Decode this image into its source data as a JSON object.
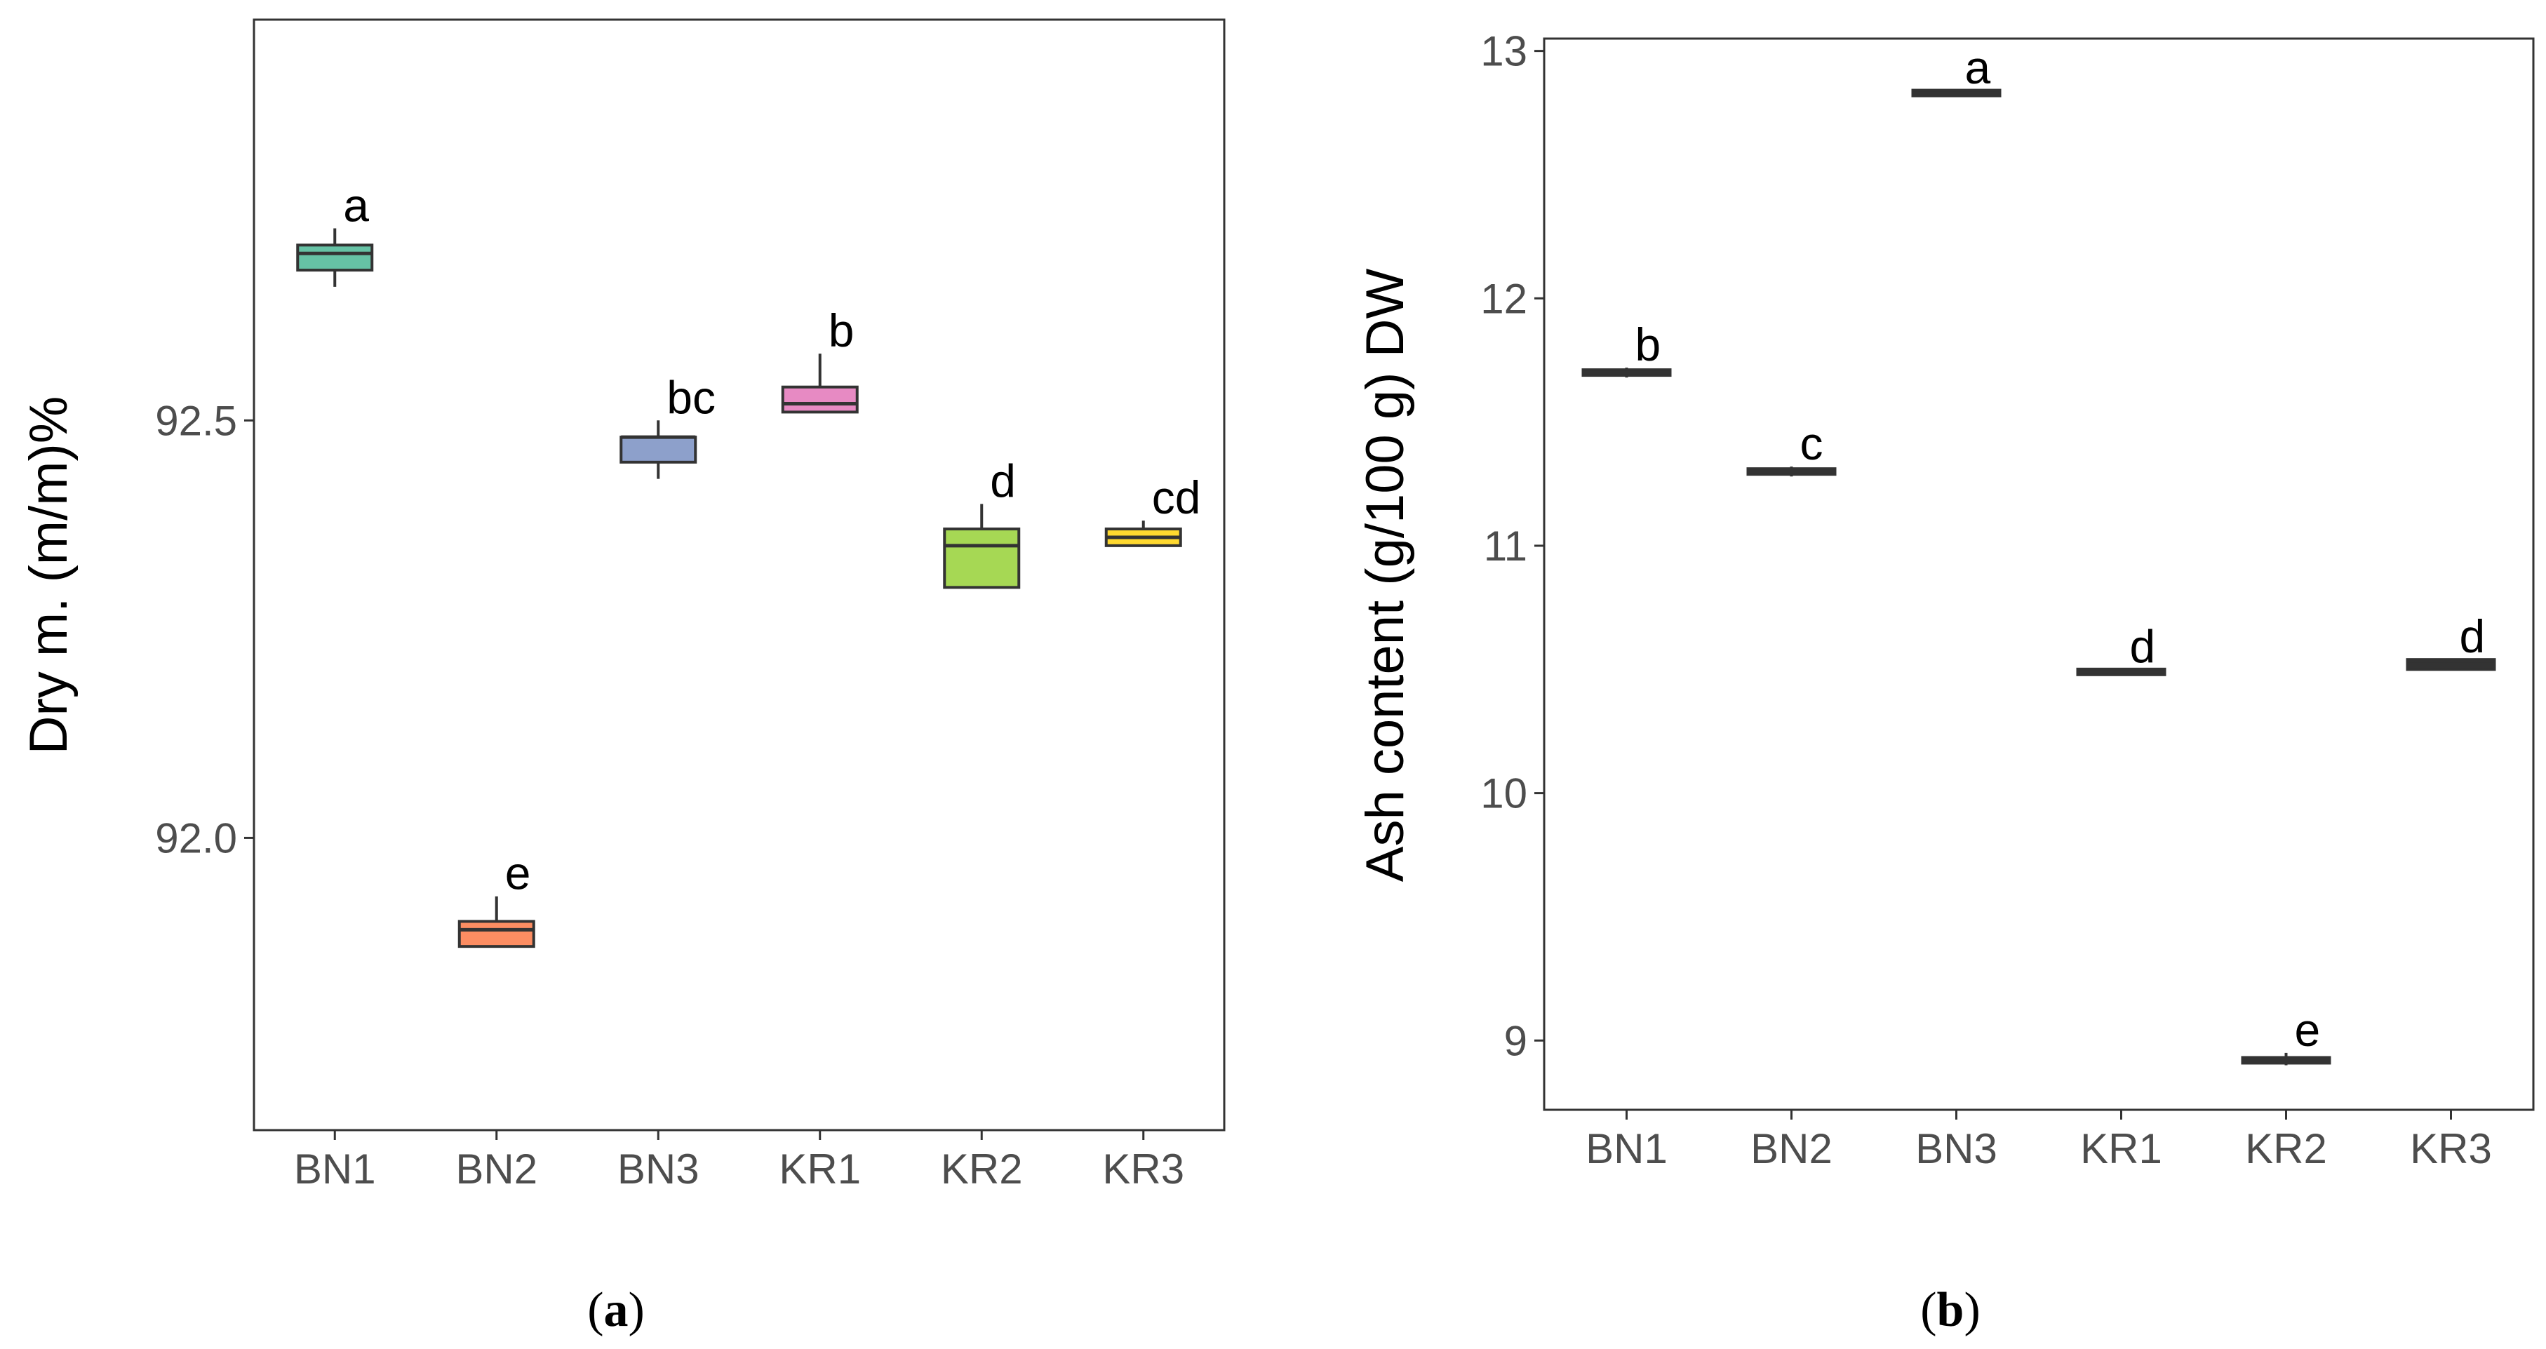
{
  "panels": [
    {
      "id": "a",
      "label": "a",
      "label_open": "(",
      "label_close": ")"
    },
    {
      "id": "b",
      "label": "b",
      "label_open": "(",
      "label_close": ")"
    }
  ],
  "chart_data": [
    {
      "type": "box",
      "panel": "a",
      "title": "",
      "xlabel": "",
      "ylabel": "Dry m. (m/m)%",
      "categories": [
        "BN1",
        "BN2",
        "BN3",
        "KR1",
        "KR2",
        "KR3"
      ],
      "ylim": [
        91.65,
        92.98
      ],
      "yticks": [
        92.0,
        92.5
      ],
      "ytick_labels": [
        "92.0",
        "92.5"
      ],
      "grid": false,
      "boxes": [
        {
          "category": "BN1",
          "min": 92.66,
          "q1": 92.68,
          "median": 92.7,
          "q3": 92.71,
          "max": 92.73,
          "letter": "a",
          "color": "#66c2a5"
        },
        {
          "category": "BN2",
          "min": 91.87,
          "q1": 91.87,
          "median": 91.89,
          "q3": 91.9,
          "max": 91.93,
          "letter": "e",
          "color": "#fc8d62"
        },
        {
          "category": "BN3",
          "min": 92.43,
          "q1": 92.45,
          "median": 92.48,
          "q3": 92.48,
          "max": 92.5,
          "letter": "bc",
          "color": "#8da0cb"
        },
        {
          "category": "KR1",
          "min": 92.51,
          "q1": 92.51,
          "median": 92.52,
          "q3": 92.54,
          "max": 92.58,
          "letter": "b",
          "color": "#e78ac3"
        },
        {
          "category": "KR2",
          "min": 92.3,
          "q1": 92.3,
          "median": 92.35,
          "q3": 92.37,
          "max": 92.4,
          "letter": "d",
          "color": "#a6d854"
        },
        {
          "category": "KR3",
          "min": 92.35,
          "q1": 92.35,
          "median": 92.36,
          "q3": 92.37,
          "max": 92.38,
          "letter": "cd",
          "color": "#ffd92f"
        }
      ]
    },
    {
      "type": "box",
      "panel": "b",
      "title": "",
      "xlabel": "",
      "ylabel": "Ash content (g/100 g) DW",
      "categories": [
        "BN1",
        "BN2",
        "BN3",
        "KR1",
        "KR2",
        "KR3"
      ],
      "ylim": [
        8.72,
        13.05
      ],
      "yticks": [
        9,
        10,
        11,
        12,
        13
      ],
      "ytick_labels": [
        "9",
        "10",
        "11",
        "12",
        "13"
      ],
      "grid": false,
      "boxes": [
        {
          "category": "BN1",
          "min": 11.68,
          "q1": 11.69,
          "median": 11.7,
          "q3": 11.71,
          "max": 11.72,
          "letter": "b",
          "color": "#333333"
        },
        {
          "category": "BN2",
          "min": 11.28,
          "q1": 11.29,
          "median": 11.3,
          "q3": 11.31,
          "max": 11.32,
          "letter": "c",
          "color": "#333333"
        },
        {
          "category": "BN3",
          "min": 12.82,
          "q1": 12.82,
          "median": 12.83,
          "q3": 12.84,
          "max": 12.84,
          "letter": "a",
          "color": "#333333"
        },
        {
          "category": "KR1",
          "min": 10.48,
          "q1": 10.48,
          "median": 10.49,
          "q3": 10.5,
          "max": 10.5,
          "letter": "d",
          "color": "#333333"
        },
        {
          "category": "KR2",
          "min": 8.9,
          "q1": 8.91,
          "median": 8.92,
          "q3": 8.93,
          "max": 8.95,
          "letter": "e",
          "color": "#333333"
        },
        {
          "category": "KR3",
          "min": 10.5,
          "q1": 10.5,
          "median": 10.52,
          "q3": 10.54,
          "max": 10.54,
          "letter": "d",
          "color": "#333333"
        }
      ]
    }
  ]
}
